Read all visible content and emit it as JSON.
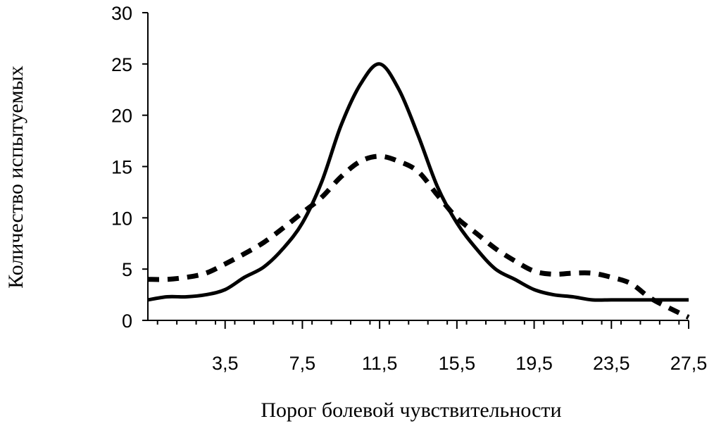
{
  "chart_data": {
    "type": "line",
    "title": "",
    "xlabel": "Порог болевой чувствительности",
    "ylabel": "Количество испытуемых",
    "xlim": [
      -0.5,
      27.5
    ],
    "ylim": [
      0,
      30
    ],
    "x_ticks": [
      3.5,
      7.5,
      11.5,
      15.5,
      19.5,
      23.5,
      27.5
    ],
    "x_tick_labels": [
      "3,5",
      "7,5",
      "11,5",
      "15,5",
      "19,5",
      "23,5",
      "27,5"
    ],
    "y_ticks": [
      0,
      5,
      10,
      15,
      20,
      25,
      30
    ],
    "y_tick_labels": [
      "0",
      "5",
      "10",
      "15",
      "20",
      "25",
      "30"
    ],
    "grid": false,
    "legend": "none",
    "series": [
      {
        "style": "solid",
        "color": "#000000",
        "x": [
          -0.5,
          0.5,
          1.5,
          2.5,
          3.5,
          4.5,
          5.5,
          6.5,
          7.5,
          8.5,
          9.5,
          10.5,
          11.5,
          12.5,
          13.5,
          14.5,
          15.5,
          16.5,
          17.5,
          18.5,
          19.5,
          20.5,
          21.5,
          22.5,
          23.5,
          24.5,
          25.5,
          26.5,
          27.5
        ],
        "values": [
          2,
          2.3,
          2.3,
          2.5,
          3,
          4.2,
          5.2,
          7,
          9.5,
          13.5,
          19,
          23,
          25,
          22.5,
          18,
          13,
          9.5,
          7,
          5,
          4,
          3,
          2.5,
          2.3,
          2,
          2,
          2,
          2,
          2,
          2
        ]
      },
      {
        "style": "dashed",
        "color": "#000000",
        "x": [
          -0.5,
          0.5,
          1.5,
          2.5,
          3.5,
          4.5,
          5.5,
          6.5,
          7.5,
          8.5,
          9.5,
          10.5,
          11.5,
          12.5,
          13.5,
          14.5,
          15.5,
          16.5,
          17.5,
          18.5,
          19.5,
          20.5,
          21.5,
          22.5,
          23.5,
          24.5,
          25.5,
          26.5,
          27.5
        ],
        "values": [
          4,
          4,
          4.2,
          4.6,
          5.5,
          6.5,
          7.6,
          9,
          10.5,
          12,
          14,
          15.5,
          16,
          15.5,
          14.5,
          12.2,
          10,
          8.5,
          7,
          5.8,
          4.8,
          4.5,
          4.6,
          4.6,
          4.2,
          3.6,
          2.2,
          1.2,
          0.3
        ]
      }
    ]
  }
}
